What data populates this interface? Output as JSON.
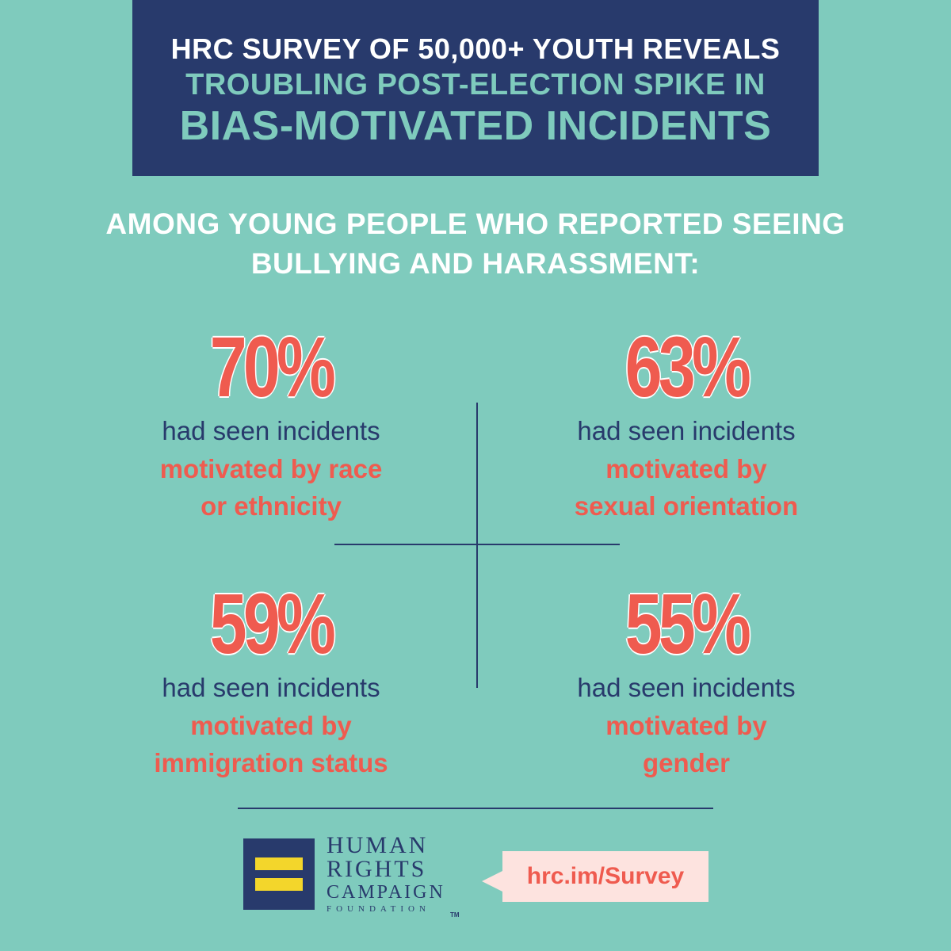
{
  "header": {
    "line1": "HRC SURVEY OF 50,000+ YOUTH REVEALS",
    "line2": "TROUBLING POST-ELECTION SPIKE IN",
    "line3": "BIAS-MOTIVATED INCIDENTS"
  },
  "subtitle": {
    "line1": "AMONG YOUNG PEOPLE WHO REPORTED SEEING",
    "line2": "BULLYING AND HARASSMENT:"
  },
  "stats": [
    {
      "percent": "70%",
      "text": "had seen incidents",
      "emph1": "motivated by race",
      "emph2": "or ethnicity"
    },
    {
      "percent": "63%",
      "text": "had seen incidents",
      "emph1": "motivated by",
      "emph2": "sexual orientation"
    },
    {
      "percent": "59%",
      "text": "had seen incidents",
      "emph1": "motivated by",
      "emph2": "immigration status"
    },
    {
      "percent": "55%",
      "text": "had seen incidents",
      "emph1": "motivated by",
      "emph2": "gender"
    }
  ],
  "logo": {
    "word1": "HUMAN",
    "word2": "RIGHTS",
    "word3": "CAMPAIGN",
    "word4": "FOUNDATION",
    "tm": "TM"
  },
  "url": "hrc.im/Survey",
  "colors": {
    "background": "#7fcbbd",
    "navy": "#283a6c",
    "coral": "#ef5b4f",
    "yellow": "#f3d62b",
    "pink": "#fde3df"
  }
}
